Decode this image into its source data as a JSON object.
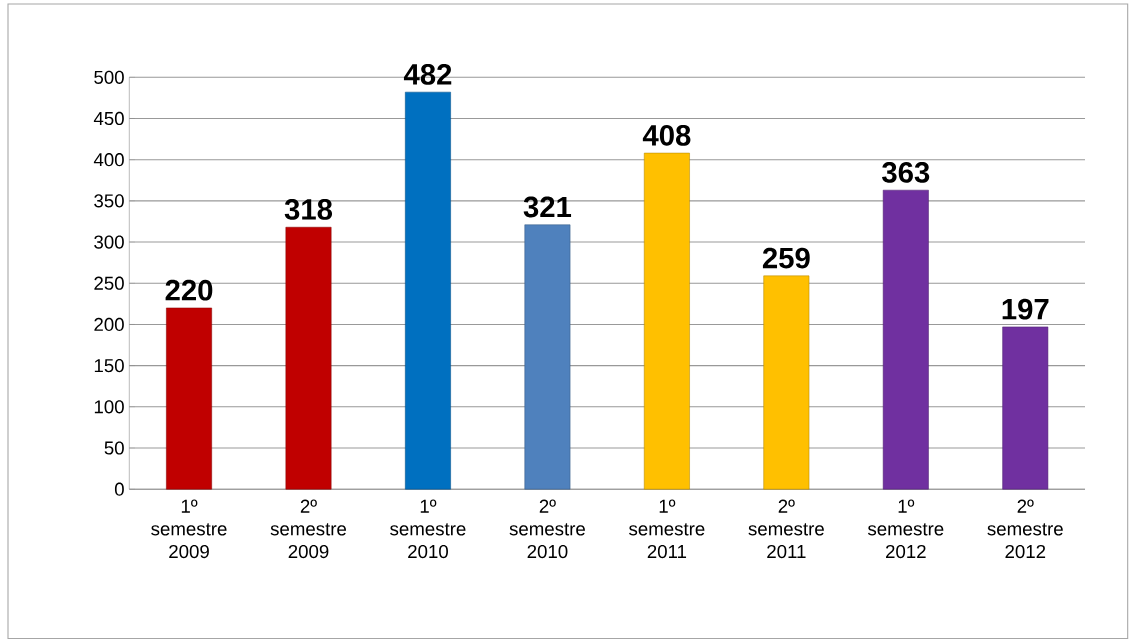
{
  "chart_data": {
    "type": "bar",
    "categories": [
      "1º semestre 2009",
      "2º semestre 2009",
      "1º semestre 2010",
      "2º semestre 2010",
      "1º semestre 2011",
      "2º semestre 2011",
      "1º semestre 2012",
      "2º semestre 2012"
    ],
    "values": [
      220,
      318,
      482,
      321,
      408,
      259,
      363,
      197
    ],
    "colors": [
      "#c00000",
      "#c00000",
      "#0070c0",
      "#4f81bd",
      "#ffc000",
      "#ffc000",
      "#7030a0",
      "#7030a0"
    ],
    "ylim": [
      0,
      500
    ],
    "yticks": [
      0,
      50,
      100,
      150,
      200,
      250,
      300,
      350,
      400,
      450,
      500
    ],
    "grid": "y",
    "data_labels": true
  }
}
